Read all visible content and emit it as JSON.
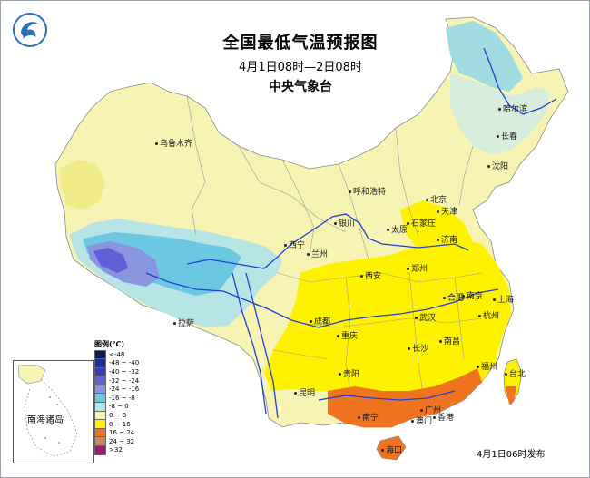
{
  "title": {
    "main": "全国最低气温预报图",
    "period": "4月1日08时—2日08时",
    "org": "中央气象台"
  },
  "footer": "4月1日06时发布",
  "inset": {
    "label": "南海诸岛"
  },
  "legend": {
    "title": "图例(℃)",
    "entries": [
      {
        "label": "<-48",
        "color": "#0b1a5a"
      },
      {
        "label": "-48 ~ -40",
        "color": "#1d2e8f"
      },
      {
        "label": "-40 ~ -32",
        "color": "#3a3ac0"
      },
      {
        "label": "-32 ~ -24",
        "color": "#5f5fd8"
      },
      {
        "label": "-24 ~ -16",
        "color": "#8a95e0"
      },
      {
        "label": "-16 ~ -8",
        "color": "#6cc7e2"
      },
      {
        "label": "-8 ~ 0",
        "color": "#b7e5e6"
      },
      {
        "label": "0 ~ 8",
        "color": "#f6f3b3"
      },
      {
        "label": "8 ~ 16",
        "color": "#fff200"
      },
      {
        "label": "16 ~ 24",
        "color": "#f0741f"
      },
      {
        "label": "24 ~ 32",
        "color": "#c48a6a"
      },
      {
        "label": ">32",
        "color": "#9b1b7a"
      }
    ]
  },
  "cities": [
    {
      "name": "乌鲁木齐",
      "id": "urumqi"
    },
    {
      "name": "哈尔滨",
      "id": "harbin"
    },
    {
      "name": "长春",
      "id": "changchun"
    },
    {
      "name": "沈阳",
      "id": "shenyang"
    },
    {
      "name": "呼和浩特",
      "id": "hohhot"
    },
    {
      "name": "北京",
      "id": "beijing"
    },
    {
      "name": "天津",
      "id": "tianjin"
    },
    {
      "name": "石家庄",
      "id": "shijiazhuang"
    },
    {
      "name": "太原",
      "id": "taiyuan"
    },
    {
      "name": "银川",
      "id": "yinchuan"
    },
    {
      "name": "西宁",
      "id": "xining"
    },
    {
      "name": "兰州",
      "id": "lanzhou"
    },
    {
      "name": "济南",
      "id": "jinan"
    },
    {
      "name": "郑州",
      "id": "zhengzhou"
    },
    {
      "name": "西安",
      "id": "xian"
    },
    {
      "name": "合肥",
      "id": "hefei"
    },
    {
      "name": "南京",
      "id": "nanjing"
    },
    {
      "name": "上海",
      "id": "shanghai"
    },
    {
      "name": "武汉",
      "id": "wuhan"
    },
    {
      "name": "杭州",
      "id": "hangzhou"
    },
    {
      "name": "成都",
      "id": "chengdu"
    },
    {
      "name": "重庆",
      "id": "chongqing"
    },
    {
      "name": "长沙",
      "id": "changsha"
    },
    {
      "name": "南昌",
      "id": "nanchang"
    },
    {
      "name": "拉萨",
      "id": "lhasa"
    },
    {
      "name": "贵阳",
      "id": "guiyang"
    },
    {
      "name": "福州",
      "id": "fuzhou"
    },
    {
      "name": "台北",
      "id": "taipei"
    },
    {
      "name": "昆明",
      "id": "kunming"
    },
    {
      "name": "南宁",
      "id": "nanning"
    },
    {
      "name": "广州",
      "id": "guangzhou"
    },
    {
      "name": "香港",
      "id": "hongkong"
    },
    {
      "name": "澳门",
      "id": "macau"
    },
    {
      "name": "海口",
      "id": "haikou"
    }
  ]
}
